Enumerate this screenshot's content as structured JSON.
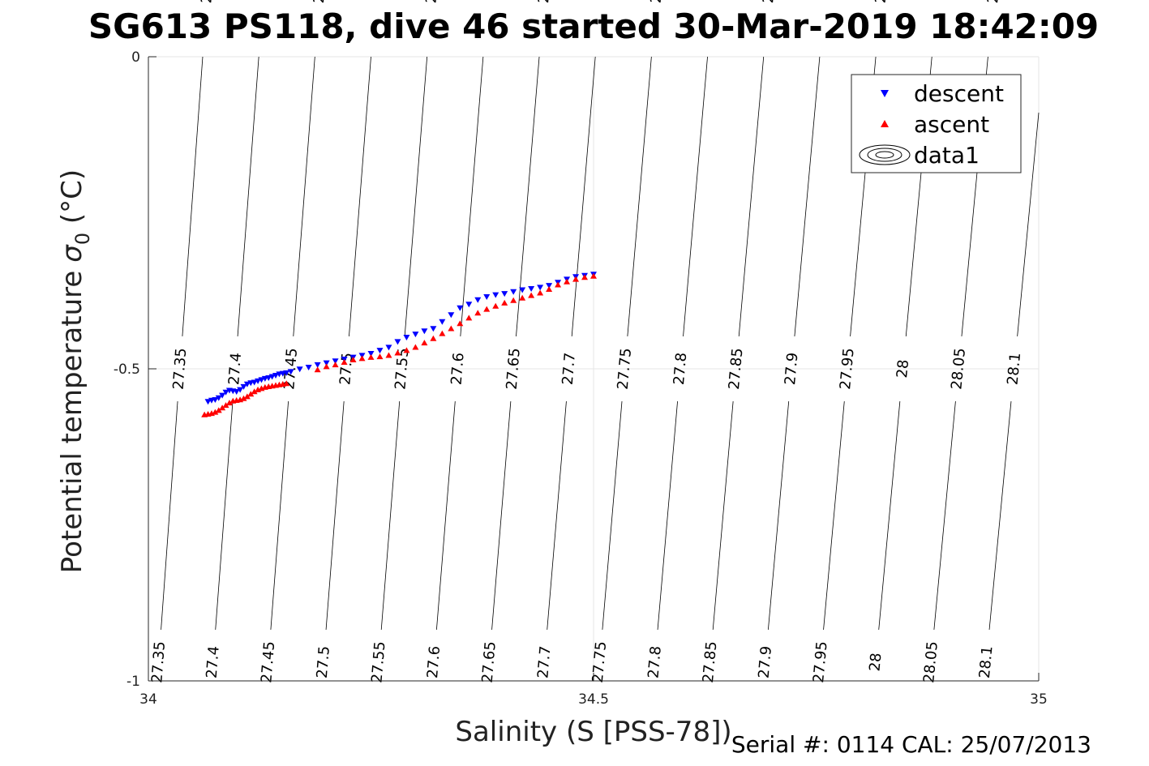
{
  "chart_data": {
    "type": "scatter",
    "title": "SG613 PS118, dive 46 started 30-Mar-2019 18:42:09",
    "xlabel": "Salinity (S [PSS-78])",
    "ylabel": "Potential temperature",
    "ylabel_symbol": "σ",
    "ylabel_subscript": "0",
    "ylabel_unit": " (°C)",
    "xlim": [
      34,
      35
    ],
    "ylim": [
      -1,
      0
    ],
    "x_ticks": [
      {
        "value": 34,
        "label": "34"
      },
      {
        "value": 34.5,
        "label": "34.5"
      },
      {
        "value": 35,
        "label": "35"
      }
    ],
    "y_ticks": [
      {
        "value": 0,
        "label": "0"
      },
      {
        "value": -0.5,
        "label": "-0.5"
      },
      {
        "value": -1,
        "label": "-1"
      }
    ],
    "grid": true,
    "legend": {
      "position": "top-right",
      "entries": [
        {
          "label": "descent",
          "marker": "triangle-down",
          "color": "#0000ff"
        },
        {
          "label": "ascent",
          "marker": "triangle-up",
          "color": "#ff0000"
        },
        {
          "label": "data1",
          "marker": "contour",
          "color": "#000000"
        }
      ]
    },
    "contours": {
      "color": "#000000",
      "levels": [
        {
          "label": "27.35",
          "x_top": 34.061,
          "x_bottom": 34.01
        },
        {
          "label": "27.4",
          "x_top": 34.124,
          "x_bottom": 34.071
        },
        {
          "label": "27.45",
          "x_top": 34.187,
          "x_bottom": 34.133
        },
        {
          "label": "27.5",
          "x_top": 34.25,
          "x_bottom": 34.195
        },
        {
          "label": "27.55",
          "x_top": 34.313,
          "x_bottom": 34.257
        },
        {
          "label": "27.6",
          "x_top": 34.376,
          "x_bottom": 34.319
        },
        {
          "label": "27.65",
          "x_top": 34.439,
          "x_bottom": 34.381
        },
        {
          "label": "27.7",
          "x_top": 34.502,
          "x_bottom": 34.443
        },
        {
          "label": "27.75",
          "x_top": 34.565,
          "x_bottom": 34.505
        },
        {
          "label": "27.8",
          "x_top": 34.628,
          "x_bottom": 34.567
        },
        {
          "label": "27.85",
          "x_top": 34.691,
          "x_bottom": 34.629
        },
        {
          "label": "27.9",
          "x_top": 34.754,
          "x_bottom": 34.691
        },
        {
          "label": "27.95",
          "x_top": 34.817,
          "x_bottom": 34.753
        },
        {
          "label": "28",
          "x_top": 34.88,
          "x_bottom": 34.815
        },
        {
          "label": "28.05",
          "x_top": 34.943,
          "x_bottom": 34.877
        },
        {
          "label": "28.1",
          "x_top": 35.006,
          "x_bottom": 34.939
        }
      ]
    },
    "series": [
      {
        "name": "descent",
        "marker": "triangle-down",
        "color": "#0000ff",
        "x": [
          34.067,
          34.071,
          34.075,
          34.079,
          34.083,
          34.087,
          34.091,
          34.095,
          34.099,
          34.103,
          34.107,
          34.111,
          34.115,
          34.119,
          34.123,
          34.127,
          34.131,
          34.135,
          34.139,
          34.143,
          34.147,
          34.151,
          34.155,
          34.16,
          34.17,
          34.18,
          34.19,
          34.2,
          34.21,
          34.22,
          34.23,
          34.24,
          34.25,
          34.26,
          34.27,
          34.28,
          34.29,
          34.3,
          34.31,
          34.32,
          34.33,
          34.34,
          34.35,
          34.36,
          34.37,
          34.38,
          34.39,
          34.4,
          34.41,
          34.42,
          34.43,
          34.44,
          34.45,
          34.46,
          34.47,
          34.48,
          34.49,
          34.5
        ],
        "y": [
          -0.553,
          -0.551,
          -0.55,
          -0.547,
          -0.543,
          -0.538,
          -0.535,
          -0.536,
          -0.537,
          -0.534,
          -0.529,
          -0.525,
          -0.523,
          -0.522,
          -0.52,
          -0.518,
          -0.516,
          -0.515,
          -0.513,
          -0.511,
          -0.509,
          -0.508,
          -0.507,
          -0.505,
          -0.501,
          -0.498,
          -0.494,
          -0.491,
          -0.488,
          -0.485,
          -0.482,
          -0.479,
          -0.476,
          -0.471,
          -0.466,
          -0.457,
          -0.45,
          -0.445,
          -0.44,
          -0.436,
          -0.425,
          -0.414,
          -0.403,
          -0.397,
          -0.39,
          -0.385,
          -0.382,
          -0.38,
          -0.377,
          -0.374,
          -0.372,
          -0.37,
          -0.367,
          -0.362,
          -0.357,
          -0.353,
          -0.351,
          -0.349
        ]
      },
      {
        "name": "ascent",
        "marker": "triangle-up",
        "color": "#ff0000",
        "x": [
          34.063,
          34.067,
          34.071,
          34.075,
          34.079,
          34.083,
          34.087,
          34.091,
          34.095,
          34.099,
          34.103,
          34.107,
          34.111,
          34.115,
          34.119,
          34.123,
          34.127,
          34.131,
          34.135,
          34.139,
          34.143,
          34.147,
          34.151,
          34.155,
          34.19,
          34.2,
          34.21,
          34.22,
          34.23,
          34.24,
          34.25,
          34.26,
          34.27,
          34.28,
          34.29,
          34.3,
          34.31,
          34.32,
          34.33,
          34.34,
          34.35,
          34.36,
          34.37,
          34.38,
          34.39,
          34.4,
          34.41,
          34.42,
          34.43,
          34.44,
          34.45,
          34.46,
          34.47,
          34.48,
          34.49,
          34.5
        ],
        "y": [
          -0.573,
          -0.572,
          -0.571,
          -0.569,
          -0.566,
          -0.562,
          -0.558,
          -0.554,
          -0.551,
          -0.55,
          -0.549,
          -0.547,
          -0.544,
          -0.54,
          -0.536,
          -0.533,
          -0.531,
          -0.529,
          -0.528,
          -0.527,
          -0.526,
          -0.525,
          -0.524,
          -0.523,
          -0.501,
          -0.496,
          -0.493,
          -0.489,
          -0.485,
          -0.483,
          -0.481,
          -0.48,
          -0.478,
          -0.474,
          -0.47,
          -0.465,
          -0.458,
          -0.451,
          -0.443,
          -0.435,
          -0.427,
          -0.418,
          -0.41,
          -0.404,
          -0.399,
          -0.394,
          -0.39,
          -0.386,
          -0.382,
          -0.378,
          -0.372,
          -0.365,
          -0.36,
          -0.356,
          -0.353,
          -0.351
        ]
      }
    ]
  },
  "footer": {
    "serial": "Serial #: 0114  CAL: 25/07/2013"
  }
}
